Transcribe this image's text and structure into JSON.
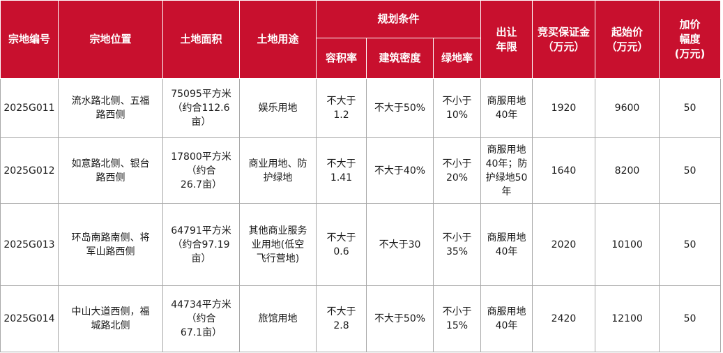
{
  "headers": {
    "plot_id": "宗地编号",
    "location": "宗地位置",
    "area": "土地面积",
    "land_use": "土地用途",
    "planning": "规划条件",
    "far": "容积率",
    "density": "建筑密度",
    "green": "绿地率",
    "term": "出让\n年限",
    "deposit": "竞买保证金\n（万元）",
    "start_price": "起始价\n（万元）",
    "increment": "加价\n幅度\n(万元)"
  },
  "rows": [
    {
      "plot_id": "2025G011",
      "location": "流水路北侧、五福\n路西侧",
      "area": "75095平方米\n（约合112.6\n亩）",
      "land_use": "娱乐用地",
      "far": "不大于\n1.2",
      "density": "不大于50%",
      "green": "不小于\n10%",
      "term": "商服用地\n40年",
      "deposit": "1920",
      "start_price": "9600",
      "increment": "50"
    },
    {
      "plot_id": "2025G012",
      "location": "如意路北侧、银台\n路西侧",
      "area": "17800平方米\n（约合\n26.7亩）",
      "land_use": "商业用地、防\n护绿地",
      "far": "不大于\n1.41",
      "density": "不大于40%",
      "green": "不小于\n20%",
      "term": "商服用地\n40年；防\n护绿地50\n年",
      "deposit": "1640",
      "start_price": "8200",
      "increment": "50"
    },
    {
      "plot_id": "2025G013",
      "location": "环岛南路南侧、将\n军山路西侧",
      "area": "64791平方米\n（约合97.19\n亩）",
      "land_use": "其他商业服务\n业用地(低空\n飞行营地)",
      "far": "不大于\n0.6",
      "density": "不大于30",
      "green": "不小于\n35%",
      "term": "商服用地\n40年",
      "deposit": "2020",
      "start_price": "10100",
      "increment": "50"
    },
    {
      "plot_id": "2025G014",
      "location": "中山大道西侧，福\n城路北侧",
      "area": "44734平方米\n（约合\n67.1亩）",
      "land_use": "旅馆用地",
      "far": "不大于\n2.8",
      "density": "不大于50%",
      "green": "不小于\n15%",
      "term": "商服用地\n40年",
      "deposit": "2420",
      "start_price": "12100",
      "increment": "50"
    }
  ],
  "colors": {
    "header_bg": "#c8102e",
    "header_text": "#ffffff",
    "border": "#a8a8a8"
  }
}
